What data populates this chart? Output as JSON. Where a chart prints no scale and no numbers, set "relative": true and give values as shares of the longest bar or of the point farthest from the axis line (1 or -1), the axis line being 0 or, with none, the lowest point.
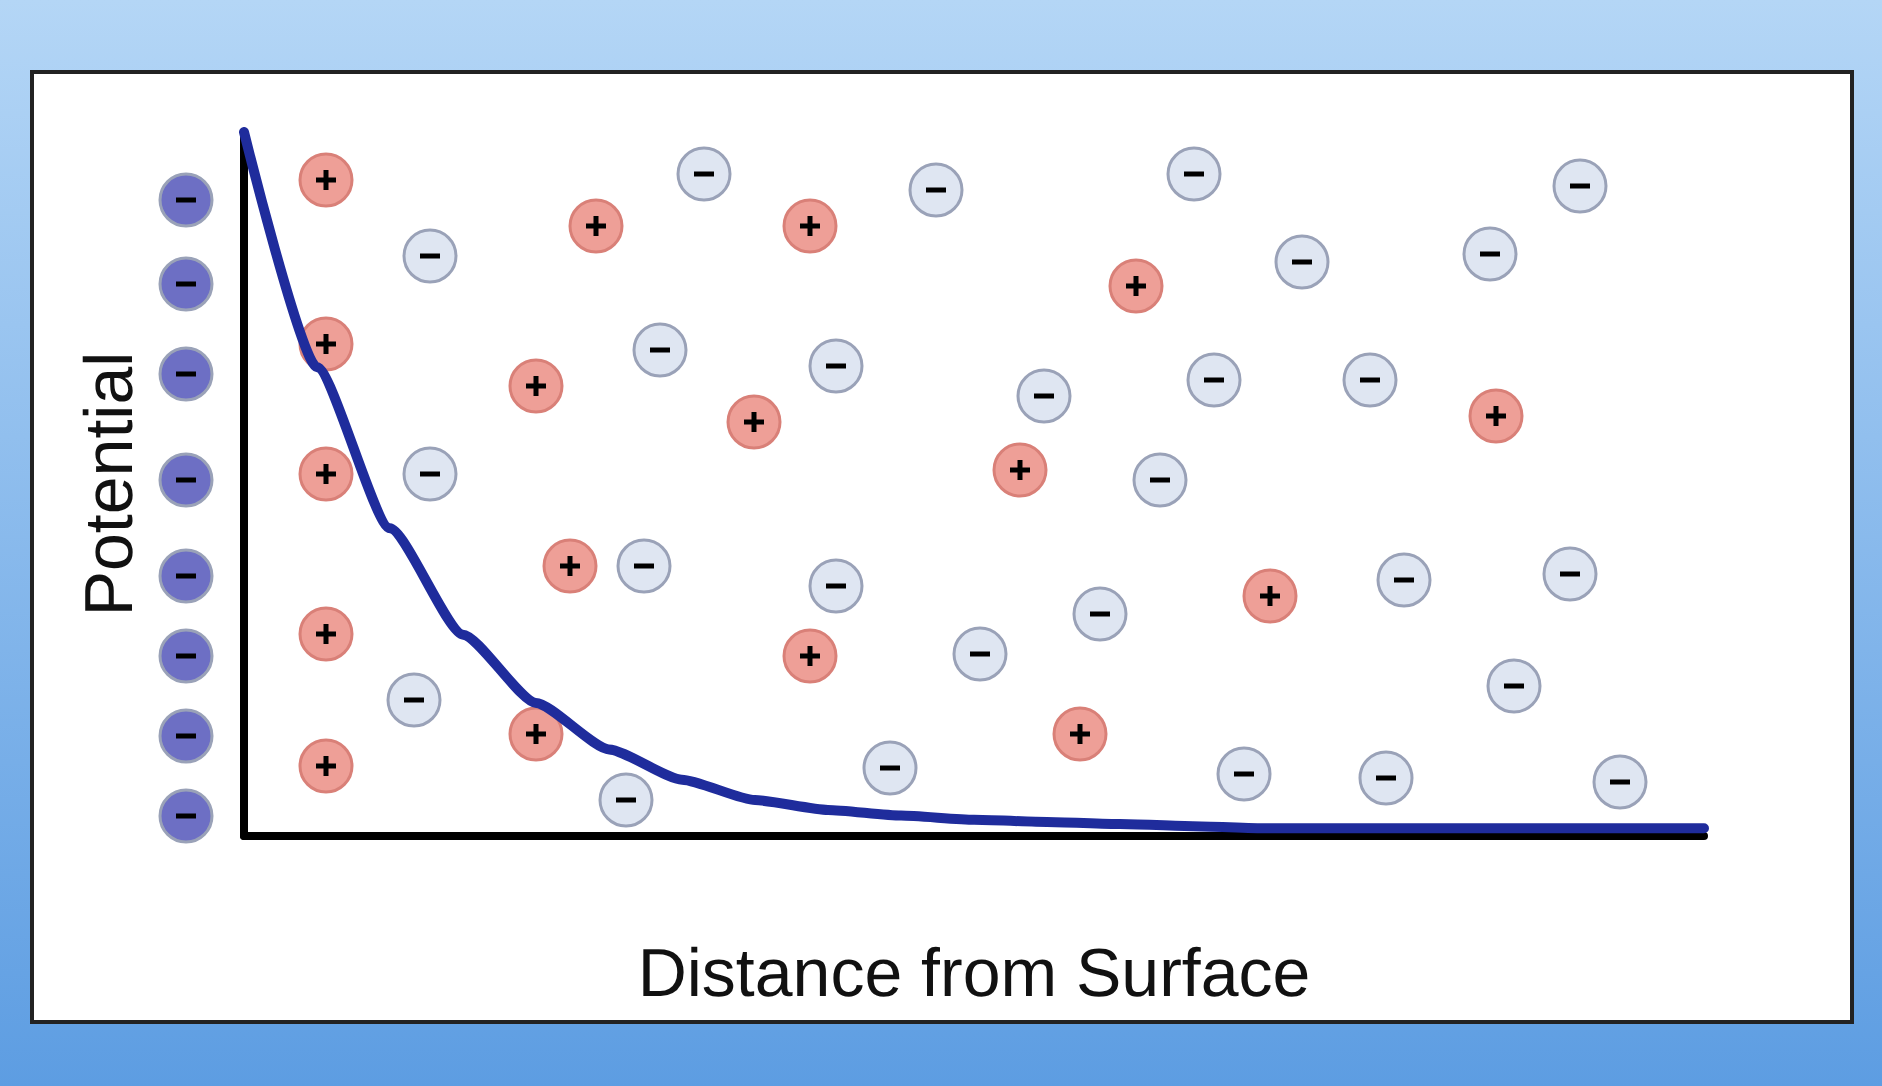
{
  "chart_data": {
    "type": "line",
    "xlabel": "Distance from Surface",
    "ylabel": "Potential",
    "relative": true,
    "grid": false,
    "legend": false,
    "marker": "none",
    "line_style": "solid",
    "categories": [
      null,
      null,
      null,
      null,
      null,
      null,
      null,
      null,
      null,
      null,
      null,
      null,
      null,
      null,
      null,
      null,
      null,
      null,
      null,
      null,
      null
    ],
    "series": [
      {
        "color": "#1f2c9c",
        "values": [
          1.0,
          0.666,
          0.437,
          0.286,
          0.189,
          0.123,
          0.08,
          0.051,
          0.037,
          0.029,
          0.023,
          0.02,
          0.017,
          0.014,
          0.011,
          0.011,
          0.011,
          0.011,
          0.011,
          0.011,
          0.011
        ]
      }
    ]
  }
}
